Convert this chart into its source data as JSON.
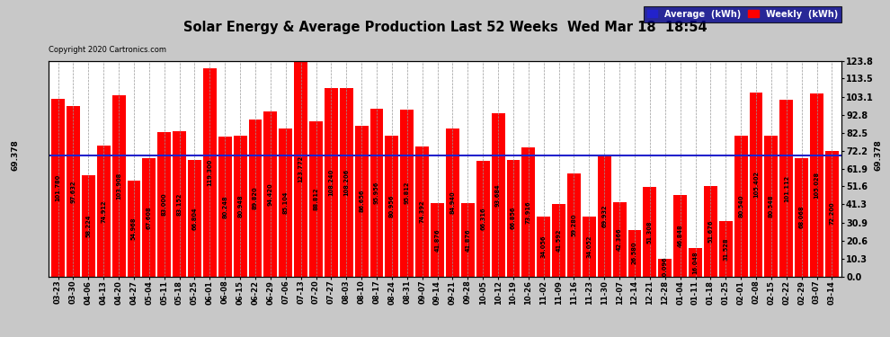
{
  "title": "Solar Energy & Average Production Last 52 Weeks  Wed Mar 18  18:54",
  "copyright": "Copyright 2020 Cartronics.com",
  "average_value": 69.378,
  "average_label": "69.378",
  "legend_avg": "Average  (kWh)",
  "legend_weekly": "Weekly  (kWh)",
  "bar_color": "#ff0000",
  "avg_line_color": "#2222cc",
  "background_color": "#c8c8c8",
  "plot_bg_color": "#ffffff",
  "grid_color": "#999999",
  "ymax": 123.8,
  "ylabel_right_values": [
    0.0,
    10.3,
    20.6,
    30.9,
    41.3,
    51.6,
    61.9,
    72.2,
    82.5,
    92.8,
    103.1,
    113.5,
    123.8
  ],
  "categories": [
    "03-23",
    "03-30",
    "04-06",
    "04-13",
    "04-20",
    "04-27",
    "05-04",
    "05-11",
    "05-18",
    "05-25",
    "06-01",
    "06-08",
    "06-15",
    "06-22",
    "06-29",
    "07-06",
    "07-13",
    "07-20",
    "07-27",
    "08-03",
    "08-10",
    "08-17",
    "08-24",
    "08-31",
    "09-07",
    "09-14",
    "09-21",
    "09-28",
    "10-05",
    "10-12",
    "10-19",
    "10-26",
    "11-02",
    "11-09",
    "11-16",
    "11-23",
    "11-30",
    "12-07",
    "12-14",
    "12-21",
    "12-28",
    "01-04",
    "01-11",
    "01-18",
    "01-25",
    "02-01",
    "02-08",
    "02-15",
    "02-22",
    "02-29",
    "03-07",
    "03-14"
  ],
  "values": [
    101.78,
    97.632,
    58.224,
    74.912,
    103.908,
    54.968,
    67.608,
    83.0,
    83.152,
    66.804,
    119.3,
    80.248,
    80.948,
    89.82,
    94.42,
    85.104,
    123.772,
    88.812,
    108.24,
    108.206,
    86.656,
    95.956,
    80.956,
    95.812,
    74.392,
    41.876,
    84.94,
    41.876,
    66.316,
    93.684,
    66.856,
    73.916,
    34.056,
    41.592,
    59.28,
    34.052,
    69.932,
    42.366,
    26.58,
    51.308,
    10.096,
    46.848,
    16.048,
    51.676,
    31.528,
    80.54,
    105.402,
    80.548,
    101.112,
    68.068,
    105.028,
    72.2
  ],
  "bar_value_labels": [
    "101.780",
    "97.632",
    "58.224",
    "74.912",
    "103.908",
    "54.968",
    "67.608",
    "83.000",
    "83.152",
    "66.804",
    "119.300",
    "80.248",
    "80.948",
    "89.820",
    "94.420",
    "85.104",
    "123.772",
    "88.812",
    "108.240",
    "108.206",
    "86.656",
    "95.956",
    "80.956",
    "95.812",
    "74.392",
    "41.876",
    "84.940",
    "41.876",
    "66.316",
    "93.684",
    "66.856",
    "73.916",
    "34.056",
    "41.592",
    "59.280",
    "34.052",
    "69.932",
    "42.366",
    "26.580",
    "51.308",
    "10.096",
    "46.848",
    "16.048",
    "51.676",
    "31.528",
    "80.540",
    "105.402",
    "80.548",
    "101.112",
    "68.068",
    "105.028",
    "72.200"
  ]
}
